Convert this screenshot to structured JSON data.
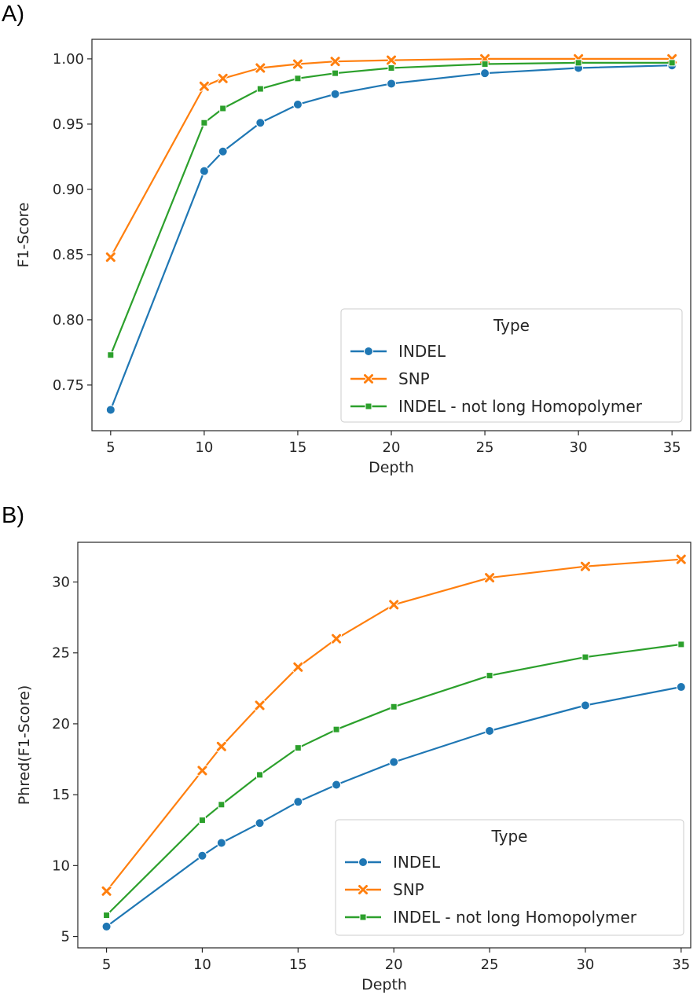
{
  "panels": {
    "a_label": "A)",
    "b_label": "B)"
  },
  "chart_data": [
    {
      "type": "line",
      "panel": "A)",
      "xlabel": "Depth",
      "ylabel": "F1-Score",
      "xlim": [
        4,
        36
      ],
      "ylim": [
        0.715,
        1.015
      ],
      "xticks": [
        5,
        10,
        15,
        20,
        25,
        30,
        35
      ],
      "yticks": [
        0.75,
        0.8,
        0.85,
        0.9,
        0.95,
        1.0
      ],
      "ytick_labels": [
        "0.75",
        "0.80",
        "0.85",
        "0.90",
        "0.95",
        "1.00"
      ],
      "x": [
        5,
        10,
        11,
        13,
        15,
        17,
        20,
        25,
        30,
        35
      ],
      "legend_title": "Type",
      "legend_position": "lower-right",
      "series": [
        {
          "name": "INDEL",
          "color": "#1f77b4",
          "marker": "circle",
          "values": [
            0.731,
            0.914,
            0.929,
            0.951,
            0.965,
            0.973,
            0.981,
            0.989,
            0.993,
            0.995
          ]
        },
        {
          "name": "SNP",
          "color": "#ff7f0e",
          "marker": "x",
          "values": [
            0.848,
            0.979,
            0.985,
            0.993,
            0.996,
            0.998,
            0.999,
            1.0,
            1.0,
            1.0
          ]
        },
        {
          "name": "INDEL - not long Homopolymer",
          "color": "#2ca02c",
          "marker": "square",
          "values": [
            0.773,
            0.951,
            0.962,
            0.977,
            0.985,
            0.989,
            0.993,
            0.996,
            0.997,
            0.997
          ]
        }
      ]
    },
    {
      "type": "line",
      "panel": "B)",
      "xlabel": "Depth",
      "ylabel": "Phred(F1-Score)",
      "xlim": [
        3.5,
        35.5
      ],
      "ylim": [
        4.2,
        32.8
      ],
      "xticks": [
        5,
        10,
        15,
        20,
        25,
        30,
        35
      ],
      "yticks": [
        5,
        10,
        15,
        20,
        25,
        30
      ],
      "ytick_labels": [
        "5",
        "10",
        "15",
        "20",
        "25",
        "30"
      ],
      "x": [
        5,
        10,
        11,
        13,
        15,
        17,
        20,
        25,
        30,
        35
      ],
      "legend_title": "Type",
      "legend_position": "lower-right",
      "series": [
        {
          "name": "INDEL",
          "color": "#1f77b4",
          "marker": "circle",
          "values": [
            5.7,
            10.7,
            11.6,
            13.0,
            14.5,
            15.7,
            17.3,
            19.5,
            21.3,
            22.6
          ]
        },
        {
          "name": "SNP",
          "color": "#ff7f0e",
          "marker": "x",
          "values": [
            8.2,
            16.7,
            18.4,
            21.3,
            24.0,
            26.0,
            28.4,
            30.3,
            31.1,
            31.6
          ]
        },
        {
          "name": "INDEL - not long Homopolymer",
          "color": "#2ca02c",
          "marker": "square",
          "values": [
            6.5,
            13.2,
            14.3,
            16.4,
            18.3,
            19.6,
            21.2,
            23.4,
            24.7,
            25.6
          ]
        }
      ]
    }
  ]
}
